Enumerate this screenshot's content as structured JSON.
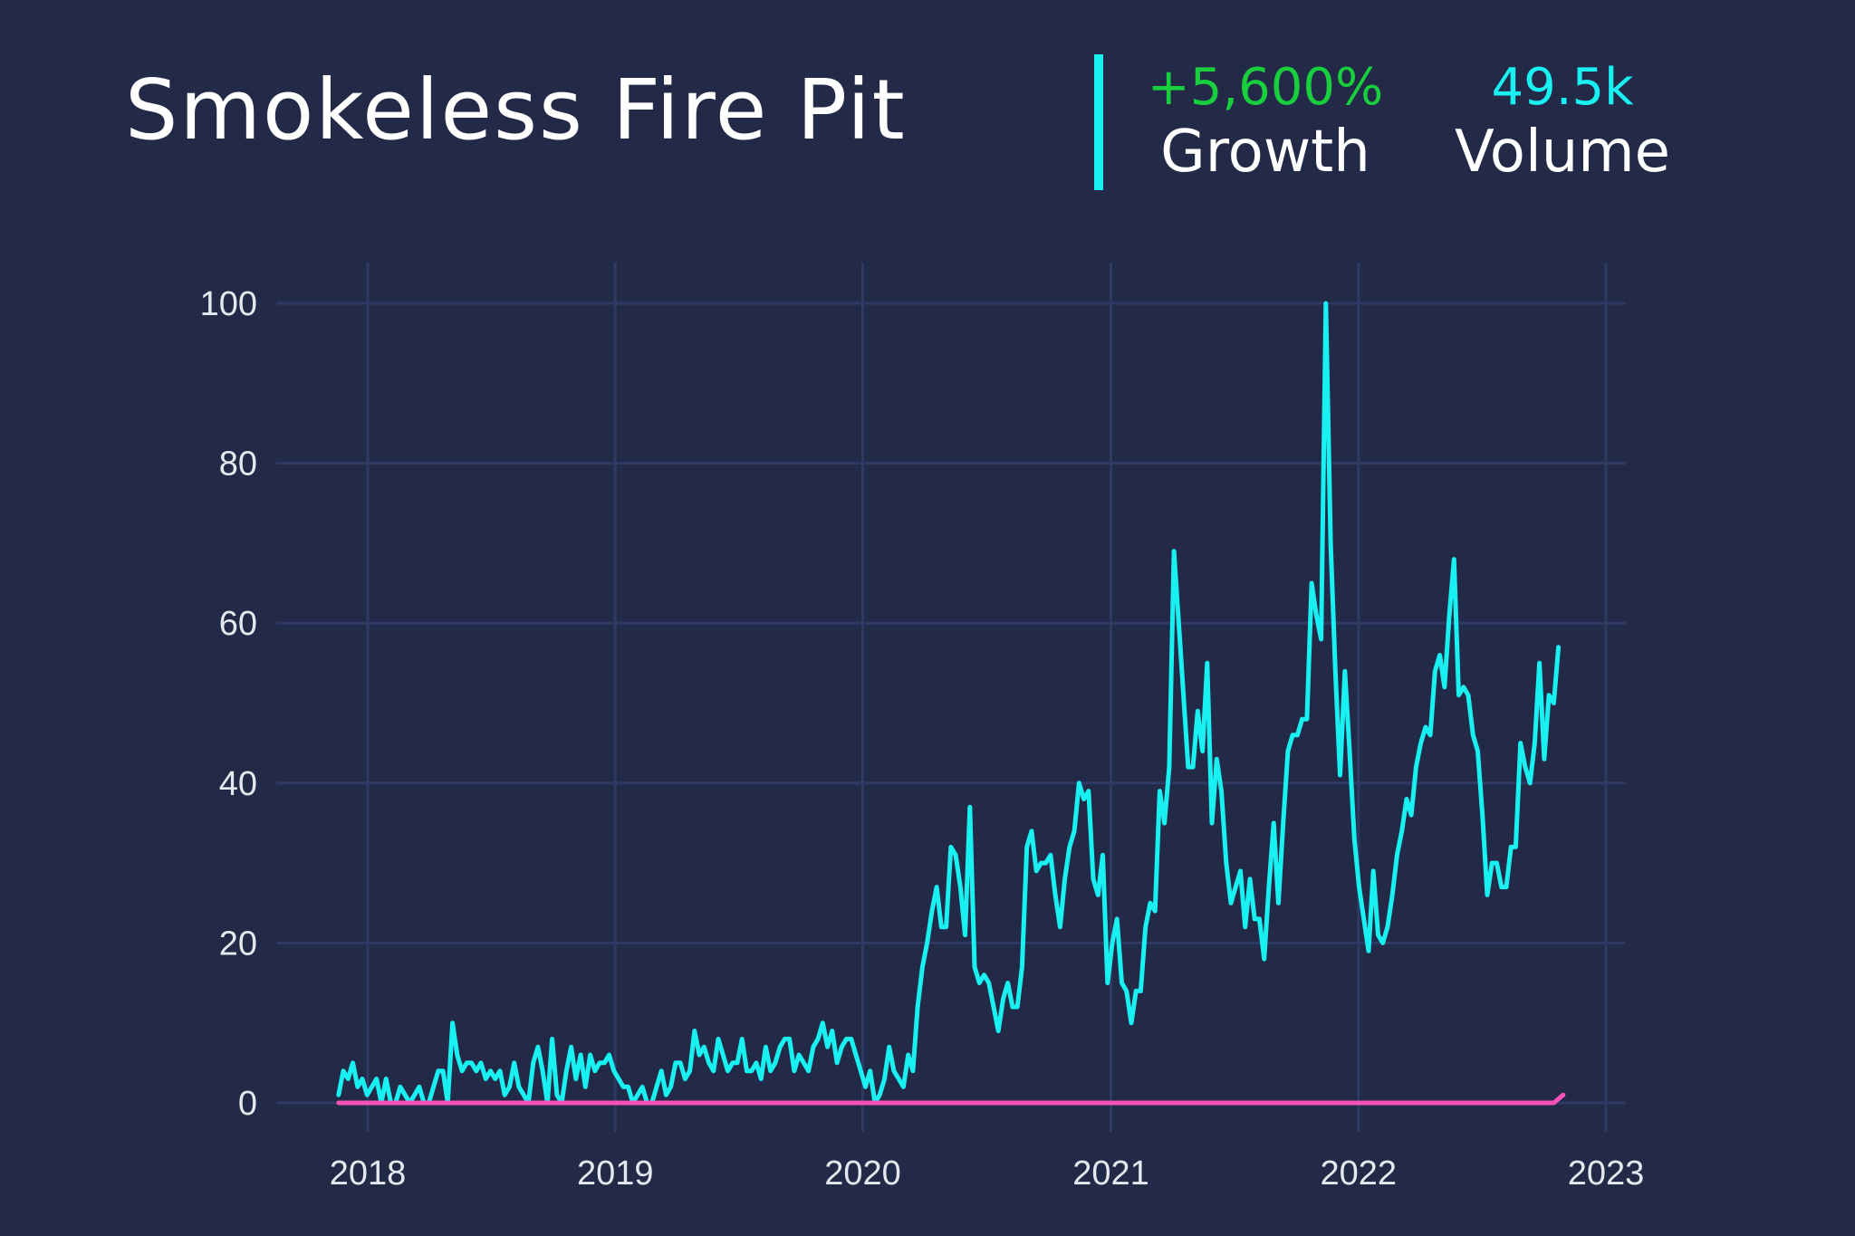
{
  "header": {
    "title": "Smokeless Fire Pit",
    "growth_value": "+5,600%",
    "growth_label": "Growth",
    "volume_value": "49.5k",
    "volume_label": "Volume"
  },
  "colors": {
    "background": "#222a47",
    "grid": "#2e3a63",
    "trend_line": "#19f0f2",
    "forecast_line": "#f552b8",
    "growth_text": "#19cf3d",
    "volume_text": "#19f0f2",
    "divider": "#19f0f2"
  },
  "chart_data": {
    "type": "line",
    "x_axis": {
      "type": "time",
      "ticks": [
        {
          "date": "2018-01-01",
          "label": "2018"
        },
        {
          "date": "2019-01-01",
          "label": "2019"
        },
        {
          "date": "2020-01-01",
          "label": "2020"
        },
        {
          "date": "2021-01-01",
          "label": "2021"
        },
        {
          "date": "2022-01-01",
          "label": "2022"
        },
        {
          "date": "2023-01-01",
          "label": "2023"
        }
      ]
    },
    "y_axis": {
      "range": [
        0,
        100
      ],
      "ticks": [
        0,
        20,
        40,
        60,
        80,
        100
      ]
    },
    "grid": true,
    "series": [
      {
        "color": "#19f0f2",
        "start_date": "2017-11-19",
        "interval_days": 7,
        "values": [
          1,
          4,
          3,
          5,
          2,
          3,
          1,
          2,
          3,
          0,
          3,
          0,
          0,
          2,
          1,
          0,
          1,
          2,
          0,
          0,
          2,
          4,
          4,
          0,
          10,
          6,
          4,
          5,
          5,
          4,
          5,
          3,
          4,
          3,
          4,
          1,
          2,
          5,
          2,
          1,
          0,
          5,
          7,
          4,
          0,
          8,
          1,
          0,
          4,
          7,
          3,
          6,
          2,
          6,
          4,
          5,
          5,
          6,
          4,
          3,
          2,
          2,
          0,
          1,
          2,
          0,
          0,
          2,
          4,
          1,
          2,
          5,
          5,
          3,
          4,
          9,
          6,
          7,
          5,
          4,
          8,
          6,
          4,
          5,
          5,
          8,
          4,
          4,
          5,
          3,
          7,
          4,
          5,
          7,
          8,
          8,
          4,
          6,
          5,
          4,
          7,
          8,
          10,
          7,
          9,
          5,
          7,
          8,
          8,
          6,
          4,
          2,
          4,
          0,
          1,
          3,
          7,
          4,
          3,
          2,
          6,
          4,
          12,
          17,
          20,
          24,
          27,
          22,
          22,
          32,
          31,
          27,
          21,
          37,
          17,
          15,
          16,
          15,
          12,
          9,
          13,
          15,
          12,
          12,
          17,
          32,
          34,
          29,
          30,
          30,
          31,
          26,
          22,
          28,
          32,
          34,
          40,
          38,
          39,
          28,
          26,
          31,
          15,
          20,
          23,
          15,
          14,
          10,
          14,
          14,
          22,
          25,
          24,
          39,
          35,
          42,
          69,
          60,
          51,
          42,
          42,
          49,
          44,
          55,
          35,
          43,
          39,
          30,
          25,
          27,
          29,
          22,
          28,
          23,
          23,
          18,
          27,
          35,
          25,
          35,
          44,
          46,
          46,
          48,
          48,
          65,
          61,
          58,
          100,
          70,
          54,
          41,
          54,
          44,
          33,
          27,
          23,
          19,
          29,
          21,
          20,
          22,
          26,
          31,
          34,
          38,
          36,
          42,
          45,
          47,
          46,
          54,
          56,
          52,
          61,
          68,
          51,
          52,
          51,
          46,
          44,
          36,
          26,
          30,
          30,
          27,
          27,
          32,
          32,
          45,
          42,
          40,
          45,
          55,
          43,
          51,
          50,
          57
        ]
      },
      {
        "color": "#f552b8",
        "points": [
          {
            "date": "2017-11-19",
            "value": 0
          },
          {
            "date": "2022-10-16",
            "value": 0
          },
          {
            "date": "2022-10-30",
            "value": 1
          }
        ]
      }
    ]
  }
}
